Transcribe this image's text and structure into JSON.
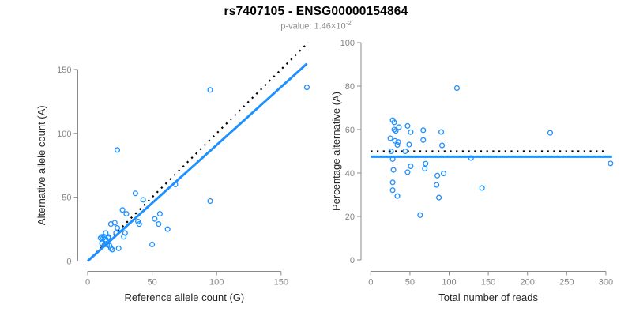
{
  "header": {
    "title": "rs7407105 - ENSG00000154864",
    "p_value_text": "p-value: 1.46×10",
    "p_value_exponent": "-2"
  },
  "colors": {
    "accent_blue": "#1E90FF",
    "dotted_black": "#000000",
    "axis_gray": "#8a8a8a",
    "tick_label_gray": "#858585",
    "axis_title_color": "#262626"
  },
  "chart_data": [
    {
      "type": "scatter",
      "xlabel": "Reference allele count (G)",
      "ylabel": "Alternative allele count (A)",
      "xlim": [
        0,
        172
      ],
      "ylim": [
        0,
        172
      ],
      "xticks": [
        0,
        50,
        100,
        150
      ],
      "yticks": [
        0,
        50,
        100,
        150
      ],
      "grid": false,
      "points": [
        [
          170,
          136
        ],
        [
          95,
          134
        ],
        [
          23,
          87
        ],
        [
          95,
          47
        ],
        [
          68,
          60
        ],
        [
          37,
          53
        ],
        [
          43,
          48
        ],
        [
          27,
          40
        ],
        [
          30,
          37
        ],
        [
          56,
          37
        ],
        [
          52,
          33
        ],
        [
          55,
          29
        ],
        [
          39,
          31
        ],
        [
          40,
          29
        ],
        [
          62,
          25
        ],
        [
          50,
          13
        ],
        [
          18,
          29
        ],
        [
          21,
          30
        ],
        [
          23,
          26
        ],
        [
          22,
          22
        ],
        [
          29,
          22
        ],
        [
          14,
          22
        ],
        [
          28,
          19
        ],
        [
          11,
          19
        ],
        [
          13,
          19
        ],
        [
          16,
          19
        ],
        [
          10,
          18
        ],
        [
          12,
          18
        ],
        [
          14,
          17
        ],
        [
          16,
          18
        ],
        [
          11,
          14
        ],
        [
          13,
          13
        ],
        [
          15,
          13
        ],
        [
          17,
          12
        ],
        [
          18,
          10
        ],
        [
          24,
          10
        ],
        [
          19,
          9
        ]
      ],
      "lines": [
        {
          "name": "identity-line",
          "style": "dotted",
          "color": "#000000",
          "x1": 0,
          "y1": 0,
          "x2": 171,
          "y2": 171
        },
        {
          "name": "regression-line",
          "style": "solid",
          "color": "#1E90FF",
          "x1": 0,
          "y1": 0,
          "x2": 170,
          "y2": 154.5
        }
      ]
    },
    {
      "type": "scatter",
      "xlabel": "Total number of reads",
      "ylabel": "Percentage alternative (A)",
      "xlim": [
        0,
        308
      ],
      "ylim": [
        0,
        100
      ],
      "xticks": [
        0,
        50,
        100,
        150,
        200,
        250,
        300
      ],
      "yticks": [
        0,
        20,
        40,
        60,
        80,
        100
      ],
      "grid": false,
      "points": [
        [
          306,
          44.4
        ],
        [
          229,
          58.5
        ],
        [
          110,
          79.1
        ],
        [
          142,
          33.1
        ],
        [
          128,
          46.9
        ],
        [
          90,
          58.9
        ],
        [
          91,
          52.7
        ],
        [
          67,
          59.7
        ],
        [
          67,
          55.2
        ],
        [
          93,
          39.8
        ],
        [
          85,
          38.8
        ],
        [
          84,
          34.5
        ],
        [
          70,
          44.3
        ],
        [
          69,
          42.0
        ],
        [
          87,
          28.7
        ],
        [
          63,
          20.6
        ],
        [
          47,
          61.7
        ],
        [
          51,
          58.8
        ],
        [
          49,
          53.1
        ],
        [
          44,
          50.0
        ],
        [
          51,
          43.1
        ],
        [
          36,
          61.1
        ],
        [
          47,
          40.4
        ],
        [
          30,
          63.3
        ],
        [
          32,
          59.4
        ],
        [
          35,
          54.3
        ],
        [
          28,
          64.3
        ],
        [
          30,
          60.0
        ],
        [
          31,
          54.8
        ],
        [
          34,
          52.9
        ],
        [
          25,
          56.0
        ],
        [
          26,
          50.0
        ],
        [
          28,
          46.4
        ],
        [
          29,
          41.4
        ],
        [
          28,
          35.7
        ],
        [
          34,
          29.4
        ],
        [
          28,
          32.1
        ]
      ],
      "lines": [
        {
          "name": "fifty-percent-line",
          "style": "dotted",
          "color": "#000000",
          "x1": 0,
          "y1": 50,
          "x2": 302,
          "y2": 50
        },
        {
          "name": "mean-percentage-line",
          "style": "solid",
          "color": "#1E90FF",
          "x1": 0,
          "y1": 47.5,
          "x2": 308,
          "y2": 47.5
        }
      ]
    }
  ]
}
